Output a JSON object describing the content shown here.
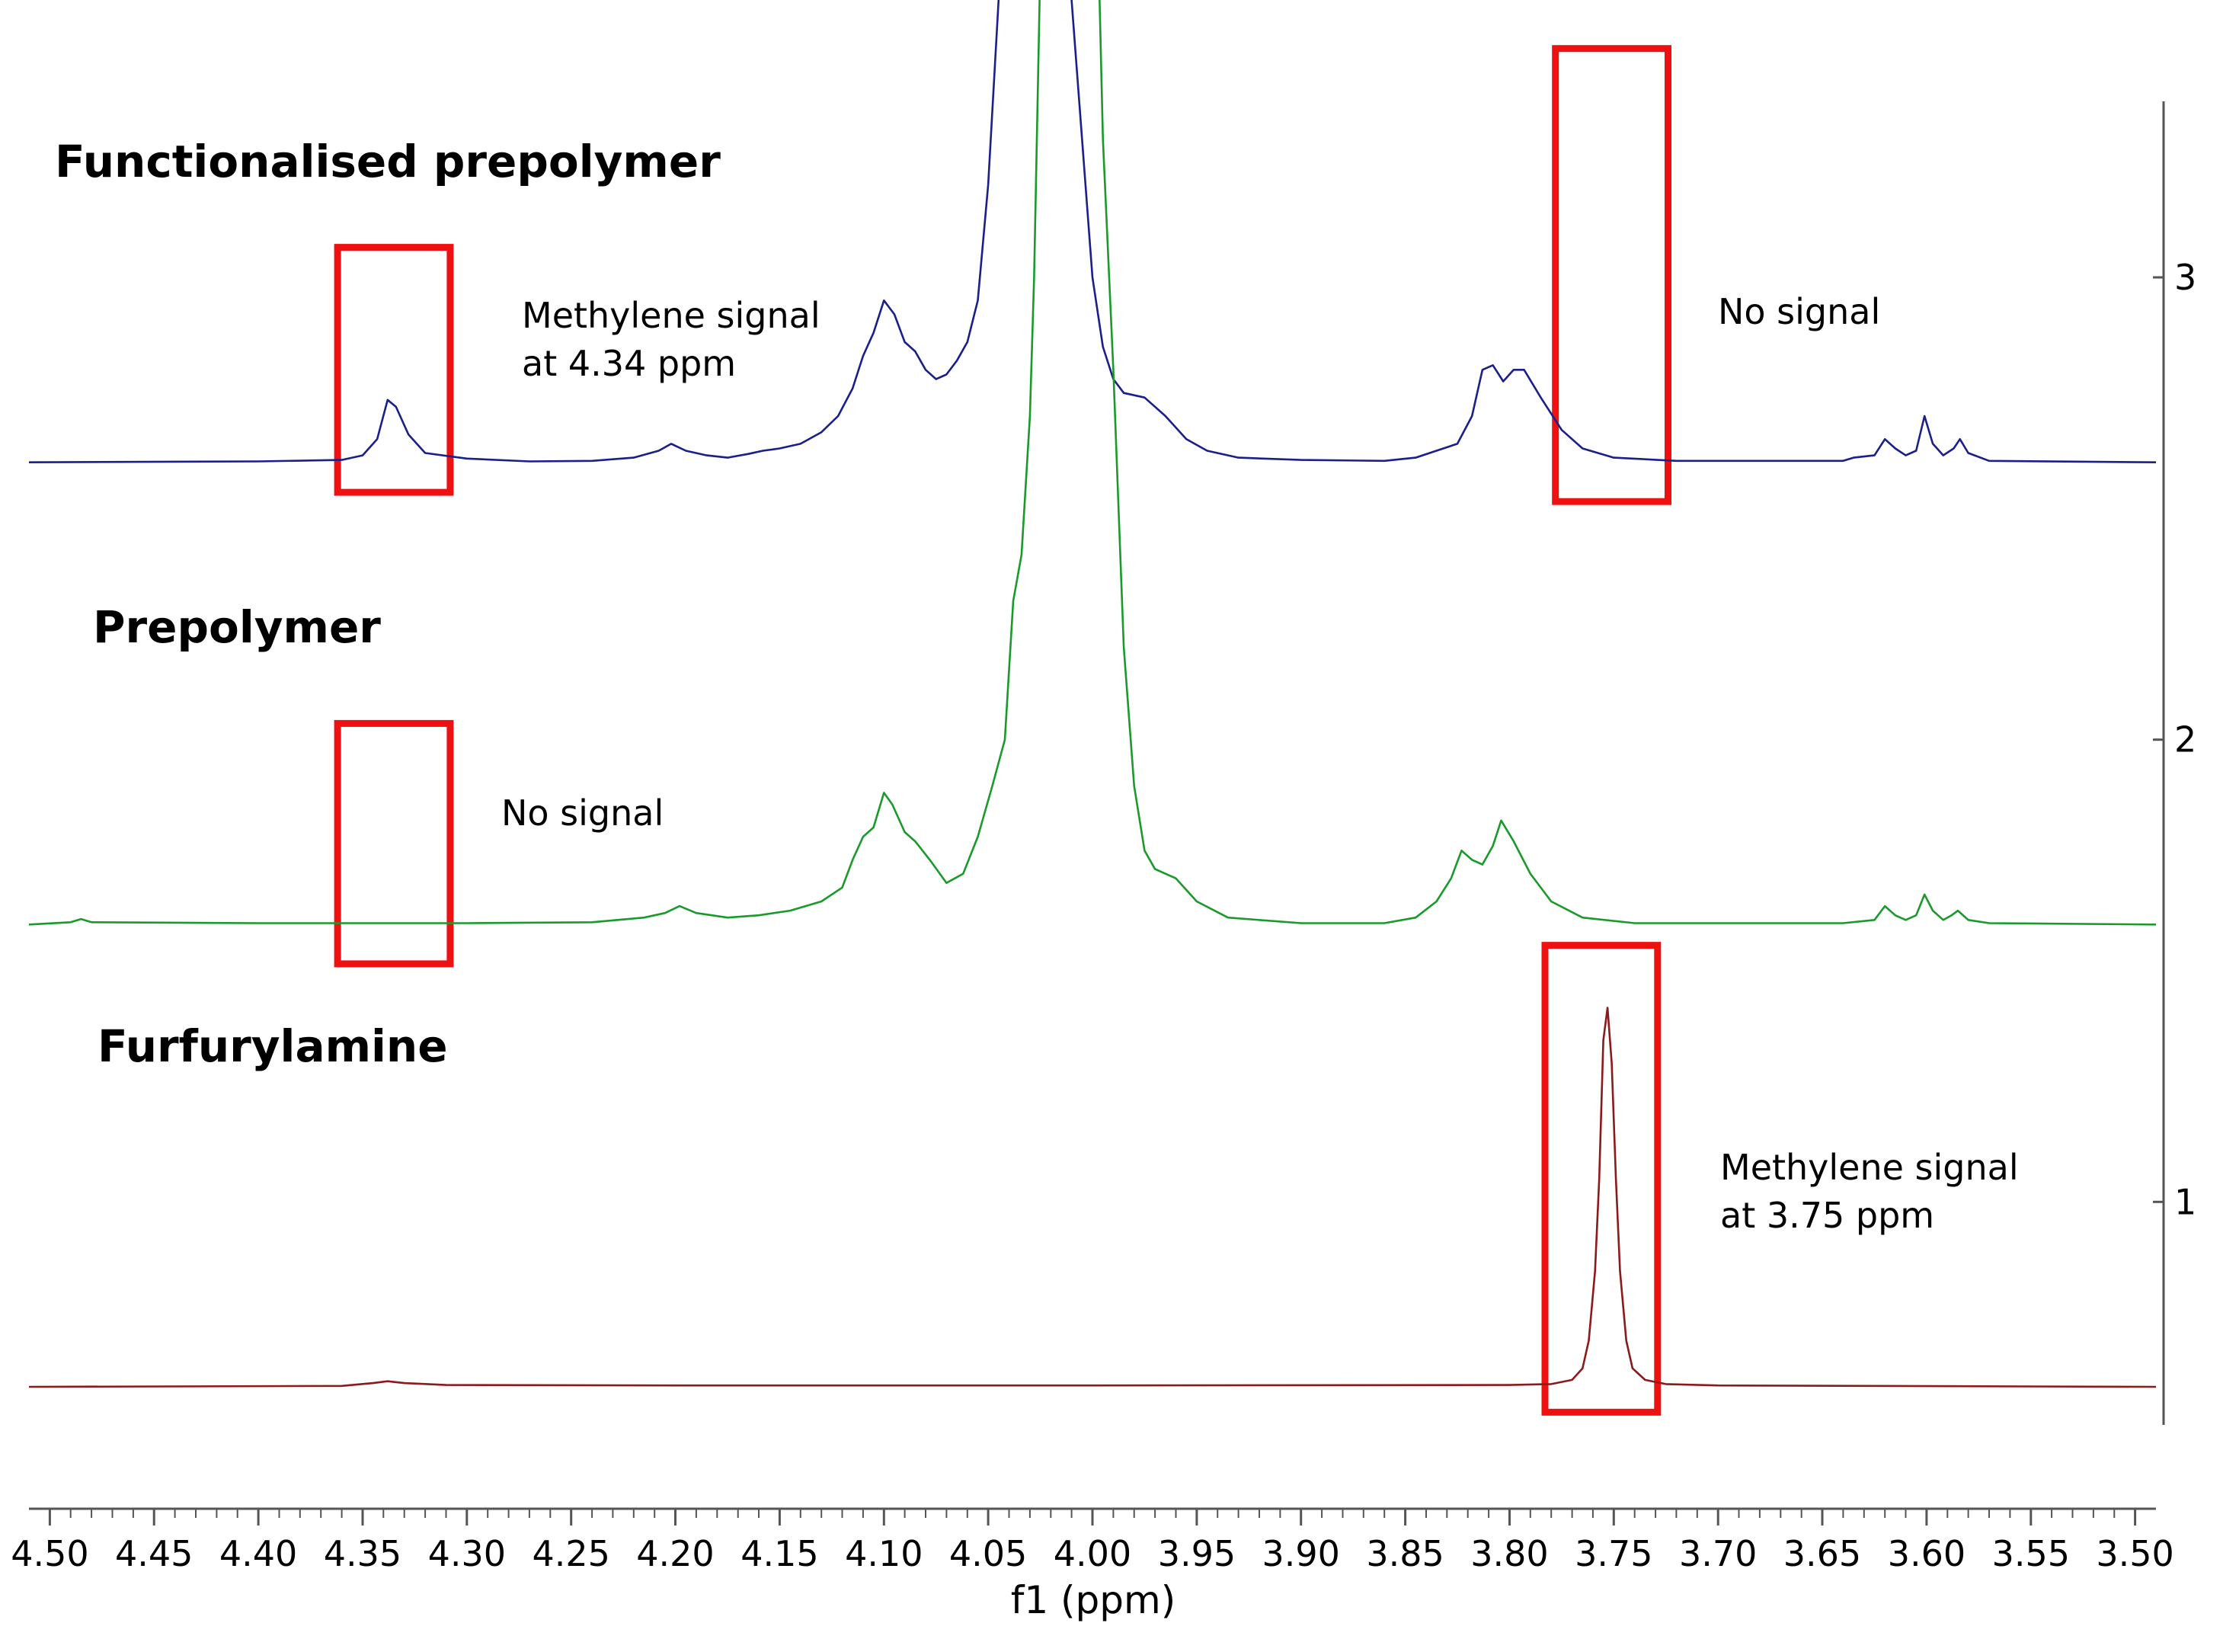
{
  "chart_data": {
    "type": "line",
    "title": "",
    "xlabel": "f1 (ppm)",
    "xlim": [
      4.51,
      3.49
    ],
    "x_reversed": true,
    "x_ticks": [
      "4.50",
      "4.45",
      "4.40",
      "4.35",
      "4.30",
      "4.25",
      "4.20",
      "4.15",
      "4.10",
      "4.05",
      "4.00",
      "3.95",
      "3.90",
      "3.85",
      "3.80",
      "3.75",
      "3.70",
      "3.65",
      "3.60",
      "3.55",
      "3.50"
    ],
    "y_ticks": [
      "1",
      "2",
      "3"
    ],
    "ylim": [
      0.6,
      3.6
    ],
    "series": [
      {
        "name": "Functionalised prepolymer",
        "color": "#1a1f8c",
        "baseline": 2.6,
        "points": [
          [
            4.51,
            2.6
          ],
          [
            4.4,
            2.602
          ],
          [
            4.36,
            2.605
          ],
          [
            4.35,
            2.615
          ],
          [
            4.343,
            2.65
          ],
          [
            4.338,
            2.735
          ],
          [
            4.334,
            2.72
          ],
          [
            4.328,
            2.66
          ],
          [
            4.32,
            2.62
          ],
          [
            4.3,
            2.608
          ],
          [
            4.27,
            2.602
          ],
          [
            4.24,
            2.603
          ],
          [
            4.22,
            2.61
          ],
          [
            4.208,
            2.625
          ],
          [
            4.202,
            2.64
          ],
          [
            4.195,
            2.625
          ],
          [
            4.185,
            2.615
          ],
          [
            4.175,
            2.61
          ],
          [
            4.165,
            2.618
          ],
          [
            4.158,
            2.625
          ],
          [
            4.15,
            2.63
          ],
          [
            4.14,
            2.64
          ],
          [
            4.13,
            2.665
          ],
          [
            4.122,
            2.7
          ],
          [
            4.115,
            2.76
          ],
          [
            4.11,
            2.83
          ],
          [
            4.105,
            2.88
          ],
          [
            4.1,
            2.95
          ],
          [
            4.095,
            2.92
          ],
          [
            4.09,
            2.86
          ],
          [
            4.085,
            2.84
          ],
          [
            4.08,
            2.8
          ],
          [
            4.075,
            2.78
          ],
          [
            4.07,
            2.79
          ],
          [
            4.065,
            2.82
          ],
          [
            4.06,
            2.86
          ],
          [
            4.055,
            2.95
          ],
          [
            4.05,
            3.2
          ],
          [
            4.045,
            3.6
          ],
          [
            4.04,
            3.68
          ],
          [
            4.012,
            3.68
          ],
          [
            4.01,
            3.6
          ],
          [
            4.005,
            3.3
          ],
          [
            4.0,
            3.0
          ],
          [
            3.995,
            2.85
          ],
          [
            3.99,
            2.78
          ],
          [
            3.985,
            2.75
          ],
          [
            3.975,
            2.74
          ],
          [
            3.965,
            2.7
          ],
          [
            3.955,
            2.65
          ],
          [
            3.945,
            2.625
          ],
          [
            3.93,
            2.61
          ],
          [
            3.9,
            2.605
          ],
          [
            3.86,
            2.603
          ],
          [
            3.845,
            2.61
          ],
          [
            3.835,
            2.625
          ],
          [
            3.825,
            2.64
          ],
          [
            3.818,
            2.7
          ],
          [
            3.813,
            2.8
          ],
          [
            3.808,
            2.81
          ],
          [
            3.803,
            2.775
          ],
          [
            3.798,
            2.8
          ],
          [
            3.793,
            2.8
          ],
          [
            3.785,
            2.74
          ],
          [
            3.775,
            2.67
          ],
          [
            3.765,
            2.63
          ],
          [
            3.75,
            2.61
          ],
          [
            3.72,
            2.603
          ],
          [
            3.64,
            2.603
          ],
          [
            3.635,
            2.61
          ],
          [
            3.625,
            2.615
          ],
          [
            3.62,
            2.65
          ],
          [
            3.615,
            2.63
          ],
          [
            3.61,
            2.615
          ],
          [
            3.605,
            2.625
          ],
          [
            3.601,
            2.7
          ],
          [
            3.597,
            2.64
          ],
          [
            3.592,
            2.615
          ],
          [
            3.587,
            2.63
          ],
          [
            3.584,
            2.65
          ],
          [
            3.58,
            2.62
          ],
          [
            3.57,
            2.603
          ],
          [
            3.49,
            2.6
          ]
        ]
      },
      {
        "name": "Prepolymer",
        "color": "#1a9a2a",
        "baseline": 1.6,
        "points": [
          [
            4.51,
            1.6
          ],
          [
            4.49,
            1.605
          ],
          [
            4.485,
            1.612
          ],
          [
            4.48,
            1.605
          ],
          [
            4.4,
            1.603
          ],
          [
            4.3,
            1.603
          ],
          [
            4.24,
            1.605
          ],
          [
            4.215,
            1.615
          ],
          [
            4.205,
            1.625
          ],
          [
            4.198,
            1.64
          ],
          [
            4.19,
            1.625
          ],
          [
            4.175,
            1.615
          ],
          [
            4.16,
            1.62
          ],
          [
            4.145,
            1.63
          ],
          [
            4.13,
            1.65
          ],
          [
            4.12,
            1.68
          ],
          [
            4.115,
            1.74
          ],
          [
            4.11,
            1.79
          ],
          [
            4.105,
            1.81
          ],
          [
            4.1,
            1.885
          ],
          [
            4.096,
            1.86
          ],
          [
            4.09,
            1.8
          ],
          [
            4.085,
            1.78
          ],
          [
            4.078,
            1.74
          ],
          [
            4.07,
            1.69
          ],
          [
            4.062,
            1.71
          ],
          [
            4.055,
            1.79
          ],
          [
            4.048,
            1.9
          ],
          [
            4.042,
            2.0
          ],
          [
            4.038,
            2.3
          ],
          [
            4.034,
            2.4
          ],
          [
            4.03,
            2.7
          ],
          [
            4.028,
            3.0
          ],
          [
            4.025,
            3.68
          ],
          [
            3.997,
            3.68
          ],
          [
            3.995,
            3.3
          ],
          [
            3.99,
            2.8
          ],
          [
            3.985,
            2.2
          ],
          [
            3.98,
            1.9
          ],
          [
            3.975,
            1.76
          ],
          [
            3.97,
            1.72
          ],
          [
            3.96,
            1.7
          ],
          [
            3.95,
            1.65
          ],
          [
            3.935,
            1.615
          ],
          [
            3.9,
            1.603
          ],
          [
            3.86,
            1.603
          ],
          [
            3.845,
            1.615
          ],
          [
            3.835,
            1.65
          ],
          [
            3.828,
            1.7
          ],
          [
            3.823,
            1.76
          ],
          [
            3.818,
            1.74
          ],
          [
            3.813,
            1.73
          ],
          [
            3.808,
            1.77
          ],
          [
            3.804,
            1.825
          ],
          [
            3.798,
            1.78
          ],
          [
            3.79,
            1.71
          ],
          [
            3.78,
            1.65
          ],
          [
            3.765,
            1.615
          ],
          [
            3.74,
            1.603
          ],
          [
            3.64,
            1.603
          ],
          [
            3.625,
            1.61
          ],
          [
            3.62,
            1.64
          ],
          [
            3.615,
            1.62
          ],
          [
            3.61,
            1.61
          ],
          [
            3.605,
            1.62
          ],
          [
            3.601,
            1.665
          ],
          [
            3.597,
            1.63
          ],
          [
            3.592,
            1.61
          ],
          [
            3.588,
            1.62
          ],
          [
            3.585,
            1.63
          ],
          [
            3.58,
            1.61
          ],
          [
            3.57,
            1.603
          ],
          [
            3.49,
            1.6
          ]
        ]
      },
      {
        "name": "Furfurylamine",
        "color": "#8b1a1a",
        "baseline": 0.6,
        "points": [
          [
            4.51,
            0.6
          ],
          [
            4.36,
            0.602
          ],
          [
            4.345,
            0.608
          ],
          [
            4.338,
            0.612
          ],
          [
            4.33,
            0.608
          ],
          [
            4.31,
            0.604
          ],
          [
            4.2,
            0.603
          ],
          [
            4.0,
            0.603
          ],
          [
            3.8,
            0.604
          ],
          [
            3.78,
            0.606
          ],
          [
            3.77,
            0.615
          ],
          [
            3.765,
            0.64
          ],
          [
            3.762,
            0.7
          ],
          [
            3.759,
            0.85
          ],
          [
            3.757,
            1.05
          ],
          [
            3.755,
            1.35
          ],
          [
            3.753,
            1.42
          ],
          [
            3.751,
            1.3
          ],
          [
            3.749,
            1.05
          ],
          [
            3.747,
            0.85
          ],
          [
            3.744,
            0.7
          ],
          [
            3.741,
            0.64
          ],
          [
            3.735,
            0.615
          ],
          [
            3.725,
            0.606
          ],
          [
            3.7,
            0.603
          ],
          [
            3.49,
            0.6
          ]
        ]
      }
    ],
    "labels": {
      "functionalised": "Functionalised prepolymer",
      "prepolymer": "Prepolymer",
      "furfurylamine": "Furfurylamine"
    },
    "annotations": {
      "fp_signal_line1": "Methylene signal",
      "fp_signal_line2": "at 4.34 ppm",
      "fp_no_signal": "No signal",
      "pp_no_signal": "No signal",
      "fa_signal_line1": "Methylene signal",
      "fa_signal_line2": "at 3.75 ppm"
    },
    "highlight_boxes": [
      {
        "name": "fp-box-4.34",
        "x_range": [
          4.362,
          4.308
        ],
        "y_range": [
          2.535,
          3.065
        ]
      },
      {
        "name": "fp-box-3.75",
        "x_range": [
          3.778,
          3.724
        ],
        "y_range": [
          2.515,
          3.495
        ]
      },
      {
        "name": "pp-box-4.34",
        "x_range": [
          4.362,
          4.308
        ],
        "y_range": [
          1.515,
          2.035
        ]
      },
      {
        "name": "fa-box-3.75",
        "x_range": [
          3.783,
          3.729
        ],
        "y_range": [
          0.545,
          1.555
        ]
      }
    ],
    "box_color": "#ee1111"
  }
}
